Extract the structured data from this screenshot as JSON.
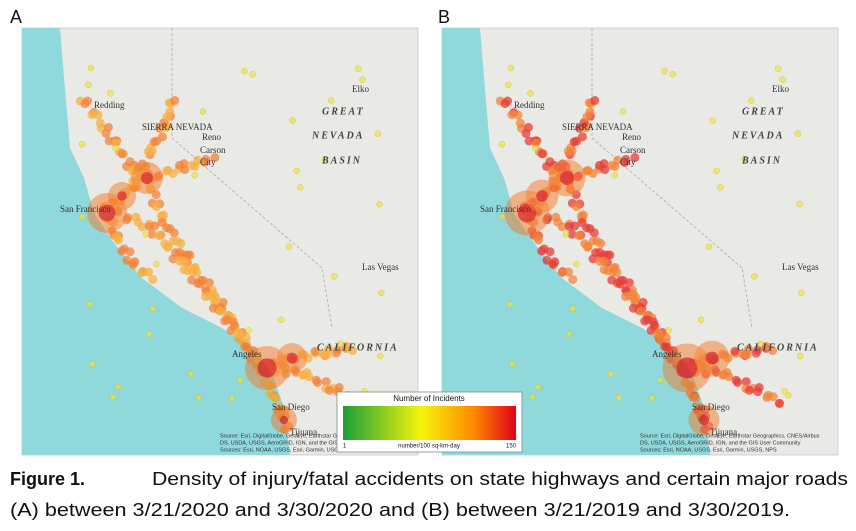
{
  "panels": [
    {
      "label": "A",
      "map_labels": [
        "Redding",
        "Reno",
        "Carson",
        "City",
        "GREAT",
        "NEVADA",
        "BASIN",
        "Elko",
        "SIERRA NEVADA",
        "San Francisco",
        "Las Vegas",
        "CALIFORNIA",
        "Angeles",
        "San Diego",
        "Tijuana"
      ],
      "attribution": [
        "Source: Esri, DigitalGlobe, GeoEye, Earthstar Geographics, CNES/Airbus",
        "DS, USDA, USGS, AeroGRID, IGN, and the GIS User Community",
        "Sources: Esri, NOAA, USGS, Esri, Garmin, USGS, NPS"
      ]
    },
    {
      "label": "B",
      "map_labels": [
        "Redding",
        "Reno",
        "Carson",
        "City",
        "GREAT",
        "NEVADA",
        "BASIN",
        "Elko",
        "SIERRA NEVADA",
        "San Francisco",
        "Las Vegas",
        "CALIFORNIA",
        "Angeles",
        "San Diego",
        "Tijuana"
      ],
      "attribution": [
        "Source: Esri, DigitalGlobe, GeoEye, Earthstar Geographics, CNES/Airbus",
        "DS, USDA, USGS, AeroGRID, IGN, and the GIS User Community",
        "Sources: Esri, NOAA, USGS, Esri, Garmin, USGS, NPS"
      ]
    }
  ],
  "legend": {
    "title": "Number of Incidents",
    "min": "1",
    "unit": "number/100 sq-km-day",
    "max": "150"
  },
  "caption": {
    "label": "Figure 1.",
    "lines": [
      "Density of injury/fatal accidents on state highways and certain major roads",
      "(A) between 3/21/2020 and 3/30/2020 and (B) between 3/21/2019 and 3/30/2019."
    ]
  }
}
